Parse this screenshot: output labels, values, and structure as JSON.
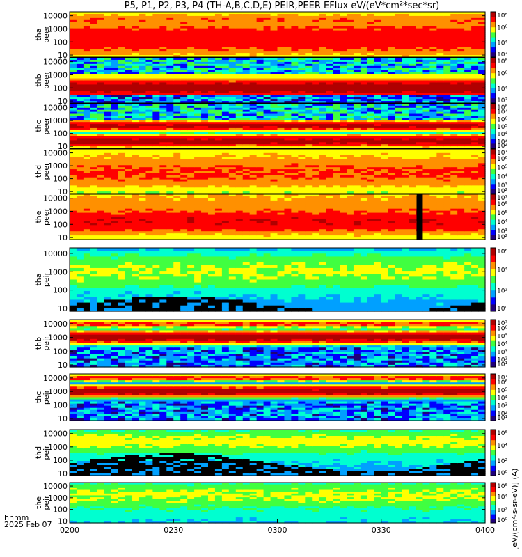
{
  "title": "P5, P1, P2, P3, P4 (TH-A,B,C,D,E) PEIR,PEER EFlux eV/(eV*cm²*sec*sr)",
  "time_label": "hhmm",
  "date_label": "2025 Feb 07",
  "colorbar_label": "[eV/(cm²-s-sr-eV)] (A)",
  "colors": {
    "spectrogram_map": [
      "#20007a",
      "#0000ff",
      "#00a0ff",
      "#00ffd0",
      "#40ff40",
      "#ffff00",
      "#ff9000",
      "#ff0000",
      "#b00000"
    ],
    "background": "#ffffff",
    "fill": "#000000"
  },
  "chart_data": {
    "type": "heatmap",
    "x_ticks": [
      "0200",
      "0230",
      "0300",
      "0330",
      "0400"
    ],
    "xlim": [
      "0200",
      "0400"
    ],
    "yscale": "log",
    "y_ticks": [
      "10",
      "100",
      "1000",
      "10000"
    ],
    "panels": [
      {
        "ylabel": [
          "tha",
          "peer"
        ],
        "cb_ticks": [
          "10²",
          "10⁴",
          "10⁶",
          "10⁸"
        ],
        "cb_range": [
          2,
          8
        ]
      },
      {
        "ylabel": [
          "thb",
          "peer"
        ],
        "cb_ticks": [
          "10²",
          "10⁴",
          "10⁶",
          "10⁸"
        ],
        "cb_range": [
          2,
          8
        ]
      },
      {
        "ylabel": [
          "thc",
          "peer"
        ],
        "cb_ticks": [
          "10²",
          "10³",
          "10⁴",
          "10⁵",
          "10⁶",
          "10⁷",
          "10⁸"
        ],
        "cb_range": [
          2,
          8
        ]
      },
      {
        "ylabel": [
          "thd",
          "peer"
        ],
        "cb_ticks": [
          "10²",
          "10³",
          "10⁴",
          "10⁵",
          "10⁶",
          "10⁷"
        ],
        "cb_range": [
          2,
          7
        ]
      },
      {
        "ylabel": [
          "the",
          "peer"
        ],
        "cb_ticks": [
          "10²",
          "10³",
          "10⁴",
          "10⁵",
          "10⁶",
          "10⁷"
        ],
        "cb_range": [
          2,
          7
        ]
      },
      {
        "ylabel": [
          "tha",
          "peir"
        ],
        "cb_ticks": [
          "10⁰",
          "10²",
          "10⁴",
          "10⁶"
        ],
        "cb_range": [
          0,
          6
        ]
      },
      {
        "ylabel": [
          "thb",
          "peir"
        ],
        "cb_ticks": [
          "10¹",
          "10²",
          "10³",
          "10⁴",
          "10⁵",
          "10⁶",
          "10⁷"
        ],
        "cb_range": [
          1,
          7
        ]
      },
      {
        "ylabel": [
          "thc",
          "peir"
        ],
        "cb_ticks": [
          "10¹",
          "10²",
          "10³",
          "10⁴",
          "10⁵",
          "10⁶",
          "10⁷"
        ],
        "cb_range": [
          1,
          7
        ]
      },
      {
        "ylabel": [
          "thd",
          "peir"
        ],
        "cb_ticks": [
          "10⁰",
          "10²",
          "10⁴",
          "10⁶"
        ],
        "cb_range": [
          0,
          6
        ]
      },
      {
        "ylabel": [
          "the",
          "peir"
        ],
        "cb_ticks": [
          "10⁰",
          "10²",
          "10⁴",
          "10⁶"
        ],
        "cb_range": [
          0,
          6
        ]
      }
    ]
  }
}
